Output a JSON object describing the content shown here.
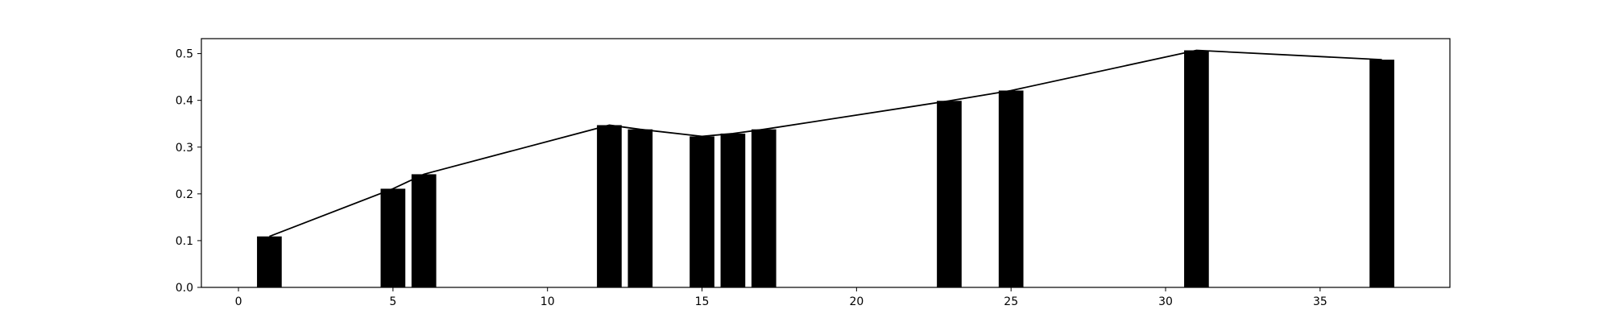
{
  "chart_data": {
    "type": "bar",
    "title": "",
    "xlabel": "",
    "ylabel": "",
    "xlim": [
      -1.2,
      39.2
    ],
    "ylim": [
      0,
      0.532
    ],
    "xticks": [
      0,
      5,
      10,
      15,
      20,
      25,
      30,
      35
    ],
    "xtick_labels": [
      "0",
      "5",
      "10",
      "15",
      "20",
      "25",
      "30",
      "35"
    ],
    "yticks": [
      0.0,
      0.1,
      0.2,
      0.3,
      0.4,
      0.5
    ],
    "ytick_labels": [
      "0.0",
      "0.1",
      "0.2",
      "0.3",
      "0.4",
      "0.5"
    ],
    "grid": false,
    "bar_width": 0.8,
    "bar_color": "#000000",
    "line_color": "#000000",
    "series": [
      {
        "kind": "bar",
        "x": [
          1,
          5,
          6,
          12,
          13,
          15,
          16,
          17,
          23,
          25,
          31,
          37
        ],
        "values": [
          0.109,
          0.211,
          0.242,
          0.347,
          0.338,
          0.323,
          0.329,
          0.338,
          0.399,
          0.421,
          0.507,
          0.487
        ]
      },
      {
        "kind": "line",
        "x": [
          1,
          5,
          6,
          12,
          13,
          15,
          16,
          17,
          23,
          25,
          31,
          37
        ],
        "values": [
          0.109,
          0.211,
          0.242,
          0.347,
          0.338,
          0.323,
          0.329,
          0.338,
          0.399,
          0.421,
          0.507,
          0.487
        ]
      }
    ]
  }
}
